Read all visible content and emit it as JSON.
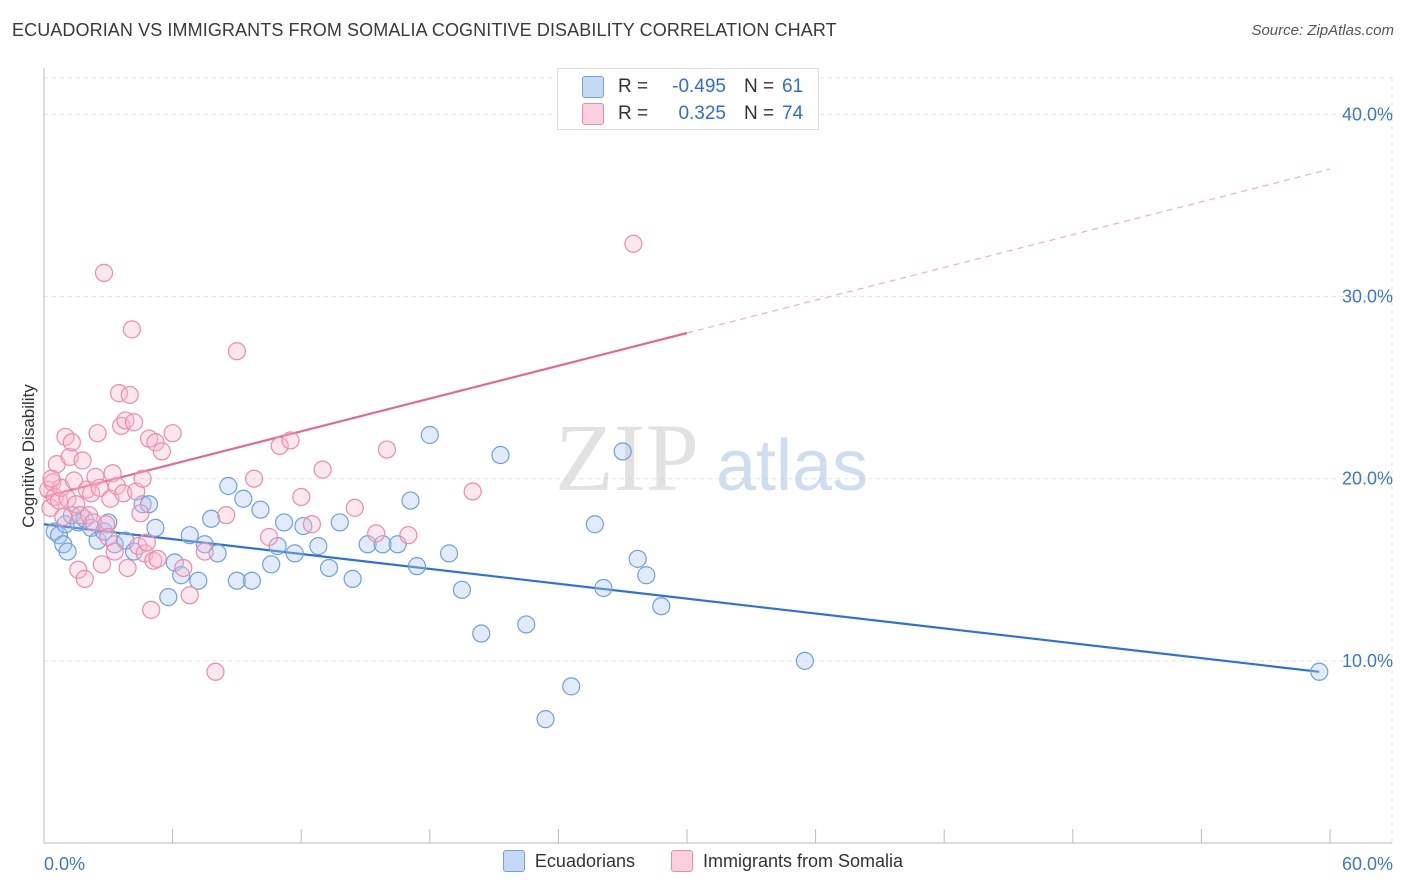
{
  "title": "ECUADORIAN VS IMMIGRANTS FROM SOMALIA COGNITIVE DISABILITY CORRELATION CHART",
  "source": "Source: ZipAtlas.com",
  "watermark": {
    "zip": "ZIP",
    "atlas": "atlas"
  },
  "stats": [
    {
      "r_label": "R =",
      "r_value": "-0.495",
      "n_label": "N =",
      "n_value": "61",
      "color": "#6fa0e0"
    },
    {
      "r_label": "R =",
      "r_value": " 0.325",
      "n_label": "N =",
      "n_value": "74",
      "color": "#f08aaa"
    }
  ],
  "legend": [
    {
      "name": "Ecuadorians",
      "color": "#6fa0e0"
    },
    {
      "name": "Immigrants from Somalia",
      "color": "#f08aaa"
    }
  ],
  "chart_data": {
    "type": "scatter",
    "ylabel": "Cognitive Disability",
    "xlim": [
      0,
      60
    ],
    "ylim": [
      0,
      42
    ],
    "x_tick_labels": [
      {
        "value": 0,
        "label": "0.0%"
      },
      {
        "value": 60,
        "label": "60.0%"
      }
    ],
    "y_tick_labels": [
      {
        "value": 10,
        "label": "10.0%"
      },
      {
        "value": 20,
        "label": "20.0%"
      },
      {
        "value": 30,
        "label": "30.0%"
      },
      {
        "value": 40,
        "label": "40.0%"
      }
    ],
    "grid": true,
    "series": [
      {
        "name": "Ecuadorians",
        "color": "#6fa0e0",
        "trend": {
          "x": [
            0,
            59.5
          ],
          "y": [
            17.5,
            9.4
          ],
          "solid_to": 59.5
        },
        "points": [
          [
            0.5,
            17.1
          ],
          [
            0.7,
            16.9
          ],
          [
            0.9,
            16.4
          ],
          [
            1.0,
            17.5
          ],
          [
            1.3,
            18.0
          ],
          [
            1.6,
            17.6
          ],
          [
            1.9,
            17.8
          ],
          [
            2.2,
            17.3
          ],
          [
            2.5,
            16.6
          ],
          [
            2.8,
            17.1
          ],
          [
            3.0,
            17.6
          ],
          [
            3.3,
            16.4
          ],
          [
            3.8,
            16.6
          ],
          [
            4.2,
            16.0
          ],
          [
            4.6,
            18.6
          ],
          [
            4.9,
            18.6
          ],
          [
            5.2,
            17.3
          ],
          [
            5.8,
            13.5
          ],
          [
            6.1,
            15.4
          ],
          [
            6.4,
            14.7
          ],
          [
            6.8,
            16.9
          ],
          [
            7.2,
            14.4
          ],
          [
            7.5,
            16.4
          ],
          [
            7.8,
            17.8
          ],
          [
            8.1,
            15.9
          ],
          [
            8.6,
            19.6
          ],
          [
            9.0,
            14.4
          ],
          [
            9.3,
            18.9
          ],
          [
            9.7,
            14.4
          ],
          [
            10.1,
            18.3
          ],
          [
            10.6,
            15.3
          ],
          [
            10.9,
            16.3
          ],
          [
            11.2,
            17.6
          ],
          [
            11.7,
            15.9
          ],
          [
            12.1,
            17.4
          ],
          [
            12.8,
            16.3
          ],
          [
            13.3,
            15.1
          ],
          [
            13.8,
            17.6
          ],
          [
            14.4,
            14.5
          ],
          [
            15.1,
            16.4
          ],
          [
            15.8,
            16.4
          ],
          [
            16.5,
            16.4
          ],
          [
            17.1,
            18.8
          ],
          [
            17.4,
            15.2
          ],
          [
            18.0,
            22.4
          ],
          [
            18.9,
            15.9
          ],
          [
            19.5,
            13.9
          ],
          [
            20.4,
            11.5
          ],
          [
            21.3,
            21.3
          ],
          [
            22.5,
            12.0
          ],
          [
            23.4,
            6.8
          ],
          [
            24.6,
            8.6
          ],
          [
            25.7,
            17.5
          ],
          [
            26.1,
            14.0
          ],
          [
            27.0,
            21.5
          ],
          [
            27.7,
            15.6
          ],
          [
            28.1,
            14.7
          ],
          [
            28.8,
            13.0
          ],
          [
            35.5,
            10.0
          ],
          [
            59.5,
            9.4
          ],
          [
            1.1,
            16.0
          ]
        ]
      },
      {
        "name": "Immigrants from Somalia",
        "color": "#f08aaa",
        "trend": {
          "x": [
            0,
            60
          ],
          "y": [
            19.0,
            37.0
          ],
          "solid_to": 30
        },
        "points": [
          [
            0.2,
            19.4
          ],
          [
            0.3,
            18.4
          ],
          [
            0.4,
            19.8
          ],
          [
            0.5,
            19.0
          ],
          [
            0.6,
            20.8
          ],
          [
            0.7,
            18.8
          ],
          [
            0.8,
            19.5
          ],
          [
            0.9,
            17.9
          ],
          [
            1.0,
            22.3
          ],
          [
            1.1,
            18.9
          ],
          [
            1.2,
            21.2
          ],
          [
            1.3,
            22.0
          ],
          [
            1.4,
            19.9
          ],
          [
            1.5,
            18.6
          ],
          [
            1.6,
            15.0
          ],
          [
            1.7,
            18.0
          ],
          [
            1.8,
            21.0
          ],
          [
            1.9,
            14.5
          ],
          [
            2.0,
            19.4
          ],
          [
            2.1,
            18.0
          ],
          [
            2.2,
            19.2
          ],
          [
            2.3,
            17.6
          ],
          [
            2.4,
            20.1
          ],
          [
            2.5,
            22.5
          ],
          [
            2.6,
            19.5
          ],
          [
            2.7,
            15.3
          ],
          [
            2.8,
            31.3
          ],
          [
            2.9,
            17.5
          ],
          [
            3.0,
            16.8
          ],
          [
            3.1,
            18.9
          ],
          [
            3.2,
            20.3
          ],
          [
            3.3,
            16.0
          ],
          [
            3.4,
            19.6
          ],
          [
            3.5,
            24.7
          ],
          [
            3.6,
            22.9
          ],
          [
            3.7,
            19.2
          ],
          [
            3.8,
            23.2
          ],
          [
            3.9,
            15.1
          ],
          [
            4.0,
            24.6
          ],
          [
            4.1,
            28.2
          ],
          [
            4.2,
            23.1
          ],
          [
            4.3,
            19.3
          ],
          [
            4.4,
            16.3
          ],
          [
            4.5,
            18.1
          ],
          [
            4.6,
            20.0
          ],
          [
            4.7,
            15.9
          ],
          [
            4.8,
            16.5
          ],
          [
            4.9,
            22.2
          ],
          [
            5.0,
            12.8
          ],
          [
            5.1,
            15.5
          ],
          [
            5.2,
            22.0
          ],
          [
            5.3,
            15.6
          ],
          [
            5.5,
            21.5
          ],
          [
            6.0,
            22.5
          ],
          [
            6.5,
            15.1
          ],
          [
            6.8,
            13.6
          ],
          [
            7.5,
            16.0
          ],
          [
            8.0,
            9.4
          ],
          [
            8.5,
            18.0
          ],
          [
            9.0,
            27.0
          ],
          [
            9.8,
            20.0
          ],
          [
            10.5,
            16.8
          ],
          [
            11.0,
            21.8
          ],
          [
            11.5,
            22.1
          ],
          [
            12.0,
            19.0
          ],
          [
            12.5,
            17.5
          ],
          [
            13.0,
            20.5
          ],
          [
            14.5,
            18.4
          ],
          [
            15.5,
            17.0
          ],
          [
            16.0,
            21.6
          ],
          [
            17.0,
            16.9
          ],
          [
            20.0,
            19.3
          ],
          [
            27.5,
            32.9
          ],
          [
            0.35,
            20.0
          ]
        ]
      }
    ]
  }
}
